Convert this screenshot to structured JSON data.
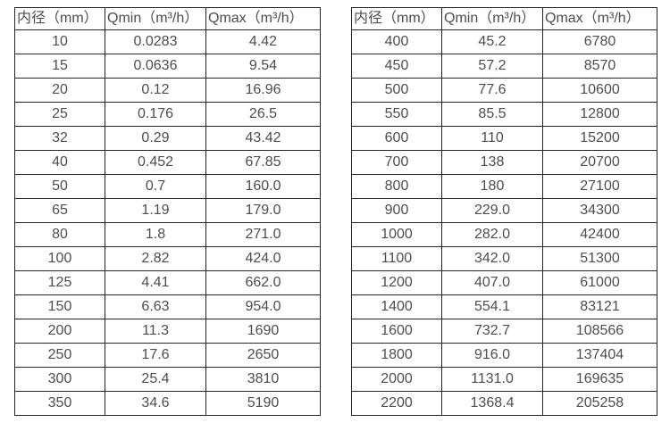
{
  "page": {
    "background_color": "#ffffff",
    "text_color": "#4d4d4d",
    "border_color": "#262626"
  },
  "tables": [
    {
      "name": "flow-table-small-diameters",
      "headers": [
        "内径（mm）",
        "Qmin（m³/h）",
        "Qmax（m³/h）"
      ],
      "rows": [
        [
          "10",
          "0.0283",
          "4.42"
        ],
        [
          "15",
          "0.0636",
          "9.54"
        ],
        [
          "20",
          "0.12",
          "16.96"
        ],
        [
          "25",
          "0.176",
          "26.5"
        ],
        [
          "32",
          "0.29",
          "43.42"
        ],
        [
          "40",
          "0.452",
          "67.85"
        ],
        [
          "50",
          "0.7",
          "160.0"
        ],
        [
          "65",
          "1.19",
          "179.0"
        ],
        [
          "80",
          "1.8",
          "271.0"
        ],
        [
          "100",
          "2.82",
          "424.0"
        ],
        [
          "125",
          "4.41",
          "662.0"
        ],
        [
          "150",
          "6.63",
          "954.0"
        ],
        [
          "200",
          "11.3",
          "1690"
        ],
        [
          "250",
          "17.6",
          "2650"
        ],
        [
          "300",
          "25.4",
          "3810"
        ],
        [
          "350",
          "34.6",
          "5190"
        ]
      ]
    },
    {
      "name": "flow-table-large-diameters",
      "headers": [
        "内径（mm）",
        "Qmin（m³/h）",
        "Qmax（m³/h）"
      ],
      "rows": [
        [
          "400",
          "45.2",
          "6780"
        ],
        [
          "450",
          "57.2",
          "8570"
        ],
        [
          "500",
          "77.6",
          "10600"
        ],
        [
          "550",
          "85.5",
          "12800"
        ],
        [
          "600",
          "110",
          "15200"
        ],
        [
          "700",
          "138",
          "20700"
        ],
        [
          "800",
          "180",
          "27100"
        ],
        [
          "900",
          "229.0",
          "34300"
        ],
        [
          "1000",
          "282.0",
          "42400"
        ],
        [
          "1100",
          "342.0",
          "51300"
        ],
        [
          "1200",
          "407.0",
          "61000"
        ],
        [
          "1400",
          "554.1",
          "83121"
        ],
        [
          "1600",
          "732.7",
          "108566"
        ],
        [
          "1800",
          "916.0",
          "137404"
        ],
        [
          "2000",
          "1131.0",
          "169635"
        ],
        [
          "2200",
          "1368.4",
          "205258"
        ]
      ]
    }
  ]
}
